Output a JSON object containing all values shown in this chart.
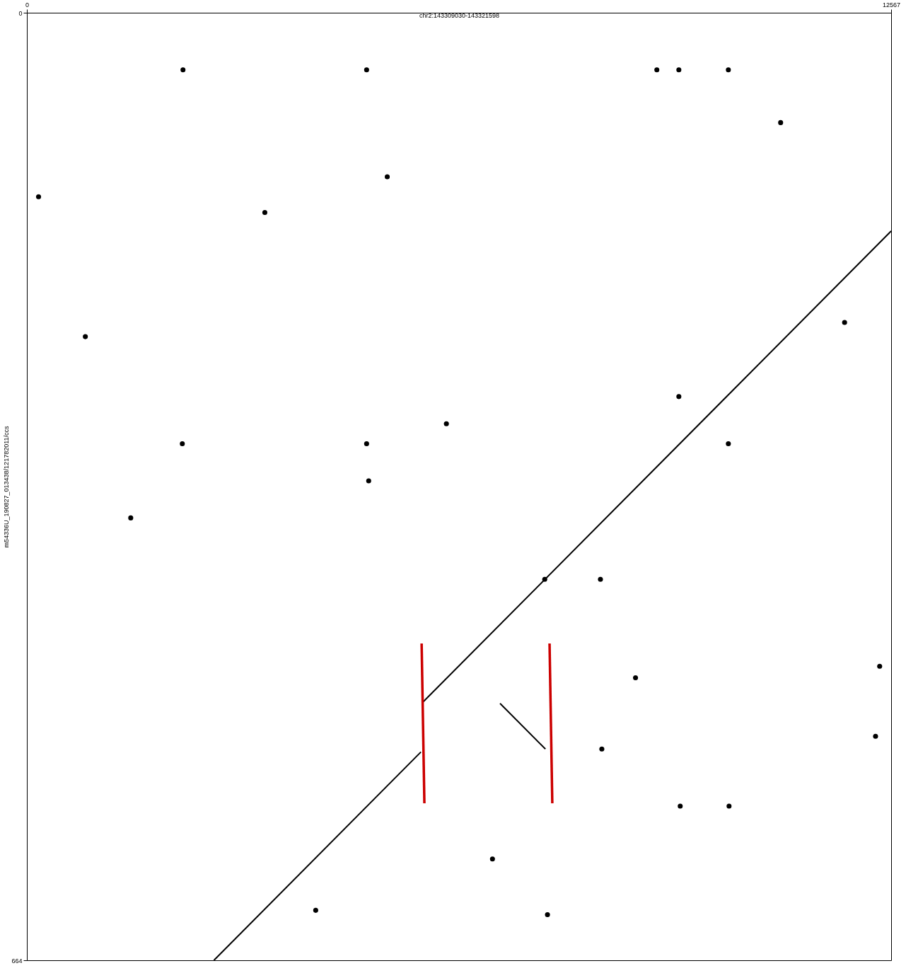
{
  "chart_data": {
    "type": "line",
    "xlabel": "chr2:143309030-143321598",
    "ylabel": "m54336U_190827_013438/121782011/ccs",
    "xlim": [
      0,
      12567
    ],
    "ylim": [
      664,
      0
    ],
    "xticks": [
      0,
      12567
    ],
    "yticks": [
      0,
      664
    ],
    "grid": false,
    "series": [
      {
        "color": "#000000",
        "x": [
          12567,
          5760
        ],
        "values": [
          153,
          483
        ]
      },
      {
        "color": "#000000",
        "x": [
          5730,
          2720
        ],
        "values": [
          518,
          664
        ]
      },
      {
        "color": "#000000",
        "x": [
          6880,
          7540
        ],
        "values": [
          484,
          516
        ]
      },
      {
        "color": "#cc0000",
        "x": [
          5740,
          5780
        ],
        "values": [
          442,
          554
        ]
      },
      {
        "color": "#cc0000",
        "x": [
          7600,
          7640
        ],
        "values": [
          442,
          554
        ]
      },
      {
        "type": "scatter",
        "color": "#000000",
        "marker": "circle",
        "x": [
          9480,
          10200,
          10960,
          10200,
          4940,
          2270,
          2260,
          4940,
          9160,
          10210,
          9500,
          8360,
          8340,
          12400,
          6100,
          3460,
          5240,
          170,
          1510,
          850,
          4970,
          4200,
          6770,
          7570,
          8850,
          12340,
          11890,
          9480,
          7530
        ],
        "values": [
          40,
          40,
          77,
          302,
          40,
          40,
          302,
          302,
          40,
          556,
          556,
          516,
          397,
          458,
          288,
          140,
          115,
          129,
          354,
          227,
          328,
          629,
          593,
          632,
          466,
          507,
          217,
          269,
          397
        ]
      }
    ]
  }
}
